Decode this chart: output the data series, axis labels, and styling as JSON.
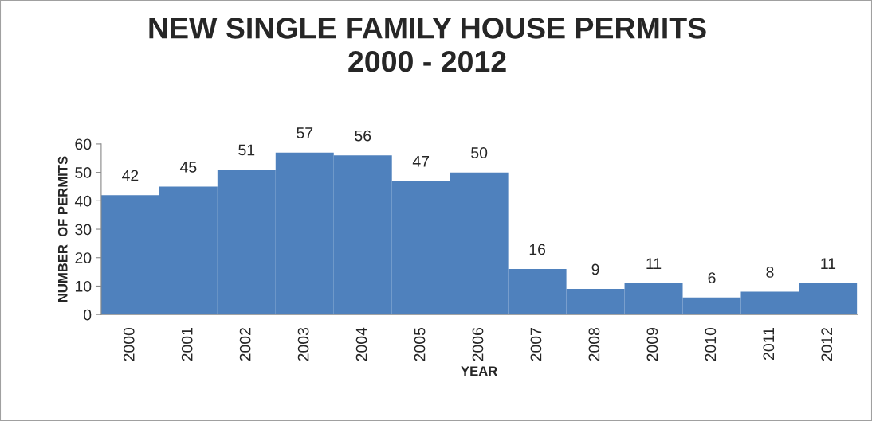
{
  "chart_data": {
    "type": "bar",
    "title": "NEW SINGLE FAMILY HOUSE PERMITS\n2000 - 2012",
    "xlabel": "YEAR",
    "ylabel": "NUMBER  OF PERMITS",
    "categories": [
      "2000",
      "2001",
      "2002",
      "2003",
      "2004",
      "2005",
      "2006",
      "2007",
      "2008",
      "2009",
      "2010",
      "2011",
      "2012"
    ],
    "values": [
      42,
      45,
      51,
      57,
      56,
      47,
      50,
      16,
      9,
      11,
      6,
      8,
      11
    ],
    "color": "#4f81bd",
    "ylim": [
      0,
      60
    ],
    "yticks": [
      0,
      10,
      20,
      30,
      40,
      50,
      60
    ],
    "grid": false,
    "data_labels": true,
    "legend": false
  }
}
